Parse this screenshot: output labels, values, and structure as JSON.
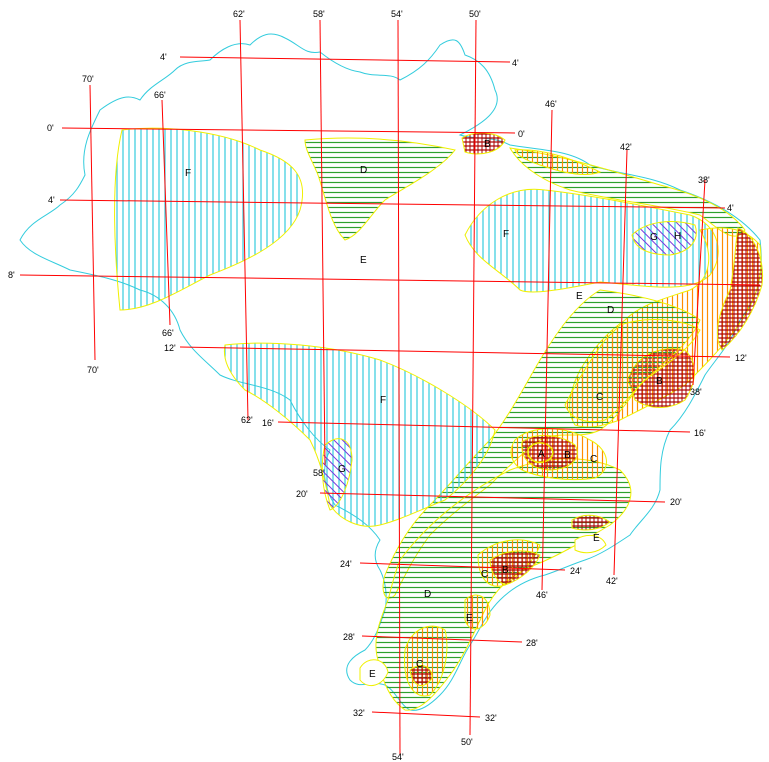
{
  "map": {
    "colors": {
      "coast": "#33ccdd",
      "grid": "#ff0000",
      "isoline": "#f0f000",
      "zone_A": "#ff0000",
      "zone_B": "#aa0000",
      "zone_C": "#ff8c00",
      "zone_D": "#2ea02e",
      "zone_F": "#33ccdd",
      "zone_G": "#7733dd",
      "zone_H": "#7733dd"
    },
    "latitude_labels": {
      "lat_n4_left": "4'",
      "lat_n4_right": "4'",
      "lat_0_left": "0'",
      "lat_0_right": "0'",
      "lat_4_left": "4'",
      "lat_4_right": "4'",
      "lat_8_left": "8'",
      "lat_12_left": "12'",
      "lat_12_right": "12'",
      "lat_16_left": "16'",
      "lat_16_right": "16'",
      "lat_20_left": "20'",
      "lat_20_right": "20'",
      "lat_24_left": "24'",
      "lat_24_right": "24'",
      "lat_28_left": "28'",
      "lat_28_right": "28'",
      "lat_32_left": "32'",
      "lat_32_right": "32'"
    },
    "longitude_labels": {
      "lon_62_top": "62'",
      "lon_58_top": "58'",
      "lon_54_top": "54'",
      "lon_50_top": "50'",
      "lon_70_top": "70'",
      "lon_66_top": "66'",
      "lon_46_top": "46'",
      "lon_42_top": "42'",
      "lon_38_top": "38'",
      "lon_66_bottom": "66'",
      "lon_70_bottom": "70'",
      "lon_62_bottom": "62'",
      "lon_58_bottom": "58'",
      "lon_38_bottom": "38'",
      "lon_46_bottom": "46'",
      "lon_42_bottom": "42'",
      "lon_50_bottom": "50'",
      "lon_54_bottom": "54'"
    },
    "zone_labels": {
      "F_north": "F",
      "D_north": "D",
      "E_amazon": "E",
      "B_coast_n": "B",
      "F_ne": "F",
      "G_ne": "G",
      "H_ne": "H",
      "E_ne": "E",
      "D_ne": "D",
      "C_bahia": "C",
      "B_bahia": "B",
      "F_west": "F",
      "G_west": "G",
      "A_minas": "A",
      "B_minas": "B",
      "C_minas": "C",
      "E_rio": "E",
      "C_sp": "C",
      "B_sp": "B",
      "D_south": "D",
      "E_south": "E",
      "C_south": "C",
      "E_rs": "E"
    }
  }
}
